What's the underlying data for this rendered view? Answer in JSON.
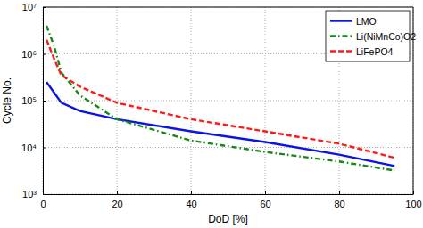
{
  "chart_data": {
    "type": "line",
    "xlabel": "DoD [%]",
    "ylabel": "Cycle No.",
    "x": [
      1,
      3,
      5,
      10,
      20,
      40,
      60,
      80,
      95
    ],
    "series": [
      {
        "name": "LMO",
        "color": "#0a14e6",
        "line_style": "solid",
        "values": [
          250000,
          150000,
          90000,
          60000,
          40000,
          22000,
          13000,
          7000,
          4000
        ]
      },
      {
        "name": "Li(NiMnCo)O2",
        "color": "#138a13",
        "line_style": "dash-dot",
        "values": [
          4000000,
          1500000,
          400000,
          130000,
          40000,
          14000,
          8000,
          5000,
          3200
        ]
      },
      {
        "name": "LiFePO4",
        "color": "#ff1a1a",
        "line_style": "dashed",
        "values": [
          2000000,
          800000,
          350000,
          200000,
          90000,
          40000,
          22000,
          12000,
          6000
        ]
      }
    ],
    "xlim": [
      0,
      100
    ],
    "xticks": [
      0,
      20,
      40,
      60,
      80,
      100
    ],
    "ylim": [
      1000,
      10000000
    ],
    "yticks": [
      {
        "value": 1000,
        "label": "10³"
      },
      {
        "value": 10000,
        "label": "10⁴"
      },
      {
        "value": 100000,
        "label": "10⁵"
      },
      {
        "value": 1000000,
        "label": "10⁶"
      },
      {
        "value": 10000000,
        "label": "10⁷"
      }
    ],
    "log": "y",
    "grid": true,
    "legend": "northeast"
  }
}
